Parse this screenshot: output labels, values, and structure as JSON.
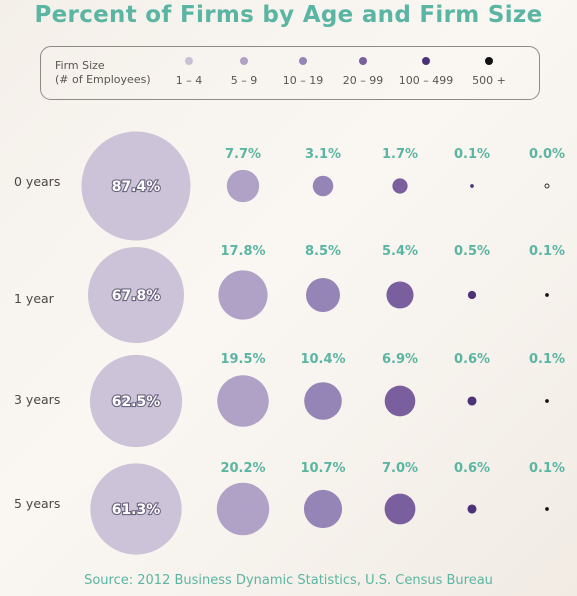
{
  "colors": {
    "title": "#5ab5a2",
    "size_1_4": "#c9c0d6",
    "size_5_9": "#afa2c6",
    "size_10_19": "#9585b7",
    "size_20_99": "#7a5f9f",
    "size_100_499": "#4c3276",
    "size_500_plus": "#111111"
  },
  "chart_data": {
    "type": "bubble-matrix",
    "title": "Percent of Firms by Age and Firm Size",
    "legend": {
      "title_line1": "Firm Size",
      "title_line2": "(# of Employees)",
      "categories": [
        "1 – 4",
        "5 – 9",
        "10 – 19",
        "20 – 99",
        "100 – 499",
        "500 +"
      ]
    },
    "rows": [
      {
        "label": "0 years",
        "values": [
          87.4,
          7.7,
          3.1,
          1.7,
          0.1,
          0.0
        ],
        "labels": [
          "87.4%",
          "7.7%",
          "3.1%",
          "1.7%",
          "0.1%",
          "0.0%"
        ]
      },
      {
        "label": "1 year",
        "values": [
          67.8,
          17.8,
          8.5,
          5.4,
          0.5,
          0.1
        ],
        "labels": [
          "67.8%",
          "17.8%",
          "8.5%",
          "5.4%",
          "0.5%",
          "0.1%"
        ]
      },
      {
        "label": "3 years",
        "values": [
          62.5,
          19.5,
          10.4,
          6.9,
          0.6,
          0.1
        ],
        "labels": [
          "62.5%",
          "19.5%",
          "10.4%",
          "6.9%",
          "0.6%",
          "0.1%"
        ]
      },
      {
        "label": "5 years",
        "values": [
          61.3,
          20.2,
          10.7,
          7.0,
          0.6,
          0.1
        ],
        "labels": [
          "61.3%",
          "20.2%",
          "10.7%",
          "7.0%",
          "0.6%",
          "0.1%"
        ]
      }
    ],
    "source": "Source: 2012 Business Dynamic Statistics, U.S. Census Bureau"
  }
}
